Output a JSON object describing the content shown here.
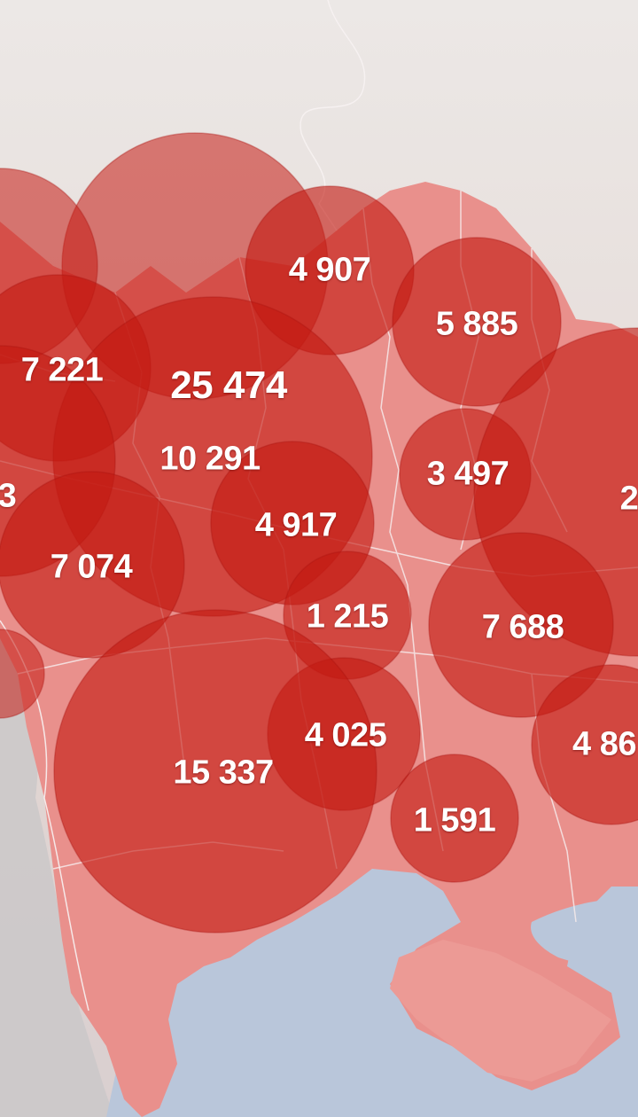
{
  "map": {
    "colors": {
      "sea": "#b9c6da",
      "land_neighbor": "#e6dcd8",
      "country": "#e9908c",
      "bubble": "#c41a12",
      "border": "#f6eaea",
      "label": "#ffffff"
    },
    "bubbles": [
      {
        "label": "4 907"
      },
      {
        "label": "5 885"
      },
      {
        "label": "7 221"
      },
      {
        "label": "25 474"
      },
      {
        "label": "10 291"
      },
      {
        "label": "3 497"
      },
      {
        "label": "3"
      },
      {
        "label": "2"
      },
      {
        "label": "4 917"
      },
      {
        "label": "7 074"
      },
      {
        "label": "1 215"
      },
      {
        "label": "7 688"
      },
      {
        "label": "4 025"
      },
      {
        "label": "4 86"
      },
      {
        "label": "15 337"
      },
      {
        "label": "1 591"
      }
    ]
  }
}
